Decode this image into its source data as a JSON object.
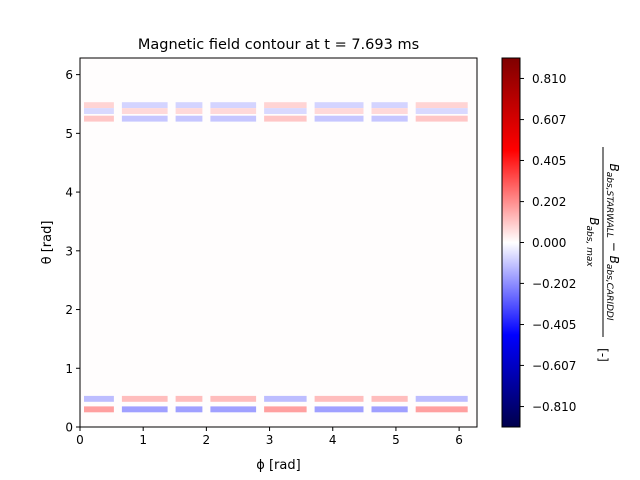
{
  "chart_data": {
    "type": "heatmap",
    "title": "Magnetic field contour at t = 7.693 ms",
    "xlabel": "ϕ [rad]",
    "ylabel": "θ [rad]",
    "xlim": [
      0,
      6.283
    ],
    "ylim": [
      0,
      6.283
    ],
    "x_ticks": [
      0,
      1,
      2,
      3,
      4,
      5,
      6
    ],
    "y_ticks": [
      0,
      1,
      2,
      3,
      4,
      5,
      6
    ],
    "colormap": "seismic",
    "colorbar": {
      "label": "(B_abs,STARWALL − B_abs,CARIDDI) / B_abs,max [-]",
      "range": [
        -0.911,
        0.911
      ],
      "ticks": [
        0.81,
        0.607,
        0.405,
        0.202,
        0.0,
        -0.202,
        -0.405,
        -0.607,
        -0.81
      ],
      "tick_labels": [
        "0.810",
        "0.607",
        "0.405",
        "0.202",
        "0.000",
        "−0.202",
        "−0.405",
        "−0.607",
        "−0.810"
      ]
    },
    "phi_segments": [
      {
        "phi_start": 0.0,
        "phi_end": 0.6,
        "sign": 1
      },
      {
        "phi_start": 0.6,
        "phi_end": 1.45,
        "sign": -1
      },
      {
        "phi_start": 1.45,
        "phi_end": 2.0,
        "sign": -1
      },
      {
        "phi_start": 2.0,
        "phi_end": 2.85,
        "sign": -1
      },
      {
        "phi_start": 2.85,
        "phi_end": 3.65,
        "sign": 1
      },
      {
        "phi_start": 3.65,
        "phi_end": 4.55,
        "sign": -1
      },
      {
        "phi_start": 4.55,
        "phi_end": 5.25,
        "sign": -1
      },
      {
        "phi_start": 5.25,
        "phi_end": 6.2,
        "sign": 1
      },
      {
        "phi_start": 6.2,
        "phi_end": 6.283,
        "sign": 1
      }
    ],
    "theta_bands": [
      {
        "theta": 5.48,
        "value": 0.09
      },
      {
        "theta": 5.38,
        "value": -0.08
      },
      {
        "theta": 5.25,
        "value": 0.12
      },
      {
        "theta": 0.48,
        "value": -0.14
      },
      {
        "theta": 0.3,
        "value": 0.2
      }
    ]
  }
}
